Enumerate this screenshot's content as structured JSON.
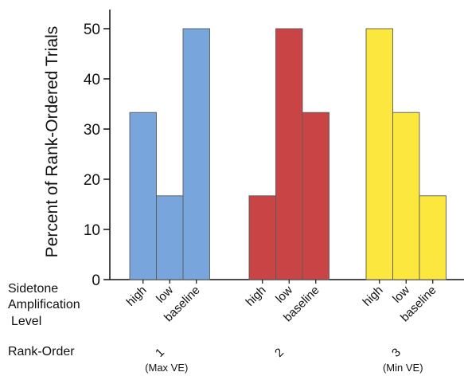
{
  "chart_data": {
    "type": "bar",
    "ylabel": "Percent of Rank-Ordered Trials",
    "ylim": [
      0,
      53
    ],
    "yticks": [
      "0",
      "10",
      "20",
      "30",
      "40",
      "50"
    ],
    "row_labels": {
      "sidetone": [
        "Sidetone",
        "Amplification",
        "Level"
      ],
      "rank_order": "Rank-Order"
    },
    "groups": [
      {
        "rank": "1",
        "sublabel": "(Max VE)",
        "color": "#78a6dc",
        "categories": [
          "high",
          "low",
          "baseline"
        ],
        "values": [
          33.3,
          16.7,
          50
        ]
      },
      {
        "rank": "2",
        "sublabel": "",
        "color": "#c94545",
        "categories": [
          "high",
          "low",
          "baseline"
        ],
        "values": [
          16.7,
          50,
          33.3
        ]
      },
      {
        "rank": "3",
        "sublabel": "(Min VE)",
        "color": "#fbe73d",
        "categories": [
          "high",
          "low",
          "baseline"
        ],
        "values": [
          50,
          33.3,
          16.7
        ]
      }
    ],
    "grid": false,
    "legend": "none"
  }
}
